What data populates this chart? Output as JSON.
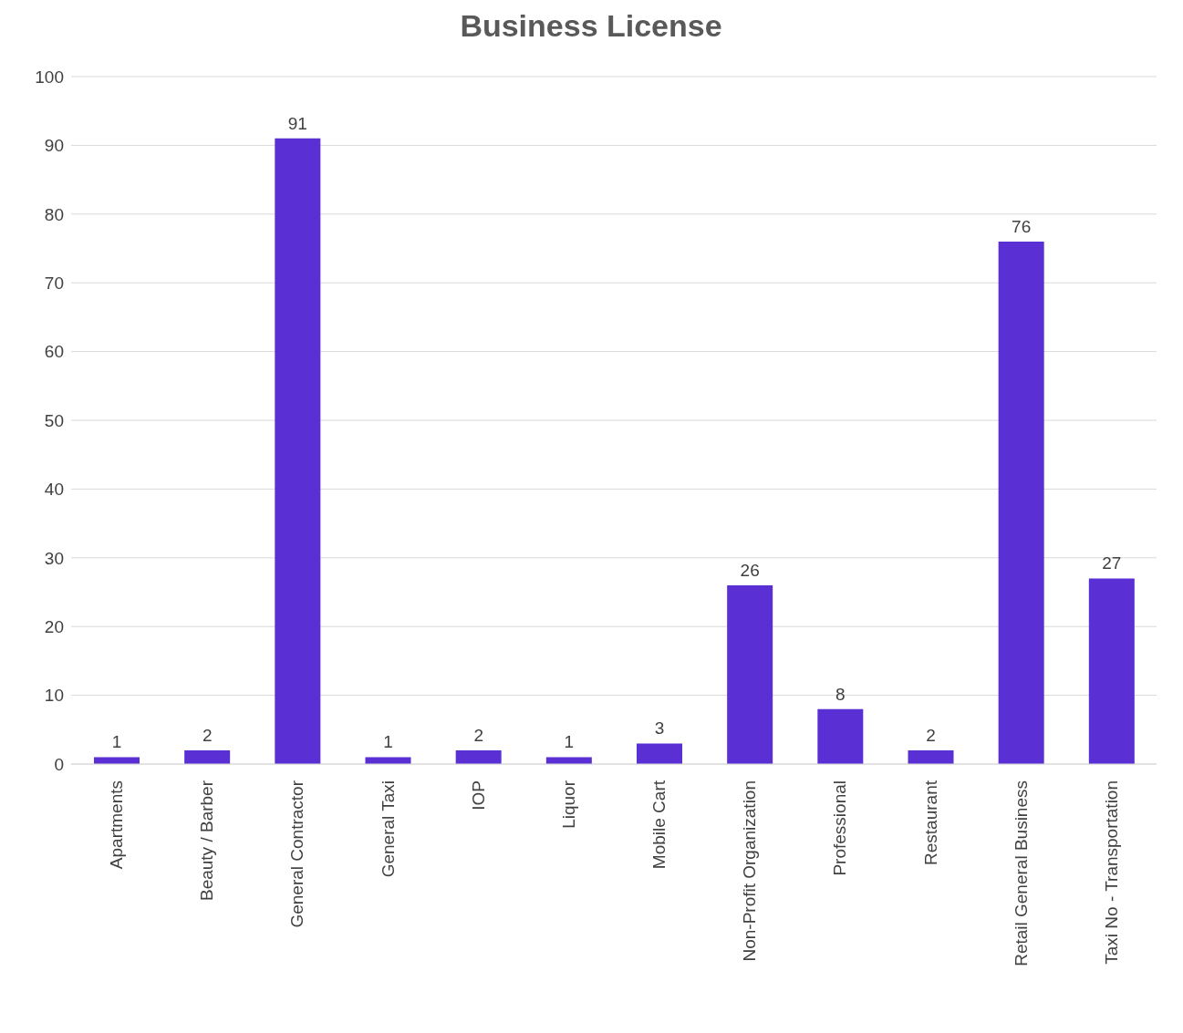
{
  "chart_data": {
    "type": "bar",
    "title": "Business License",
    "categories": [
      "Apartments",
      "Beauty / Barber",
      "General Contractor",
      "General Taxi",
      "IOP",
      "Liquor",
      "Mobile Cart",
      "Non-Profit Organization",
      "Professional",
      "Restaurant",
      "Retail General Business",
      "Taxi No - Transportation"
    ],
    "values": [
      1,
      2,
      91,
      1,
      2,
      1,
      3,
      26,
      8,
      2,
      76,
      27
    ],
    "color": "#5a2fd4",
    "ylim": [
      0,
      100
    ],
    "yticks": [
      0,
      10,
      20,
      30,
      40,
      50,
      60,
      70,
      80,
      90,
      100
    ],
    "grid": "y",
    "data_labels": true
  }
}
